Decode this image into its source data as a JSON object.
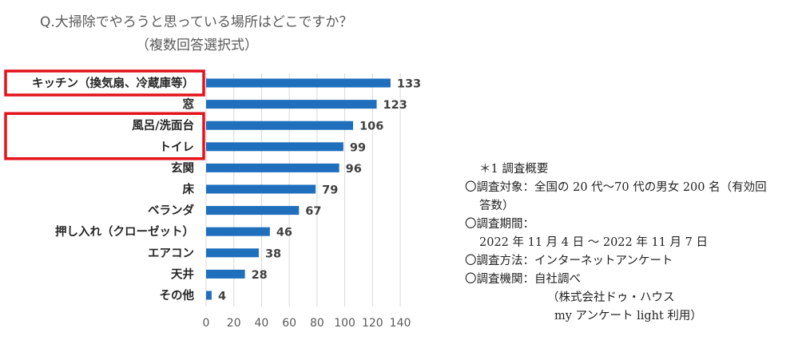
{
  "chart_data": {
    "type": "bar",
    "orientation": "horizontal",
    "title": "Q.大掃除でやろうと思っている場所はどこですか？",
    "subtitle": "（複数回答選択式）",
    "categories": [
      "キッチン（換気扇、冷蔵庫等）",
      "窓",
      "風呂/洗面台",
      "トイレ",
      "玄関",
      "床",
      "ベランダ",
      "押し入れ（クローゼット）",
      "エアコン",
      "天井",
      "その他"
    ],
    "values": [
      133,
      123,
      106,
      99,
      96,
      79,
      67,
      46,
      38,
      28,
      4
    ],
    "xlim": [
      0,
      140
    ],
    "xticks": [
      "0",
      "20",
      "40",
      "60",
      "80",
      "100",
      "120",
      "140"
    ],
    "grid": true,
    "highlighted_categories": [
      "キッチン（換気扇、冷蔵庫等）",
      "風呂/洗面台",
      "トイレ"
    ],
    "colors": {
      "bar": "#1f6fbd",
      "highlight": "#e3121b"
    }
  },
  "notes": {
    "heading": "＊1 調査概要",
    "target_1": "〇調査対象：全国の 20 代〜70 代の男女 200 名（有効回",
    "target_2": "答数）",
    "period_label": "〇調査期間：",
    "period_value": "2022 年 11 月 4 日 〜 2022 年 11 月 7 日",
    "method": "〇調査方法：インターネットアンケート",
    "org": "〇調査機関：自社調べ",
    "org_detail_1": "（株式会社ドゥ・ハウス",
    "org_detail_2": "my アンケート light 利用）"
  }
}
